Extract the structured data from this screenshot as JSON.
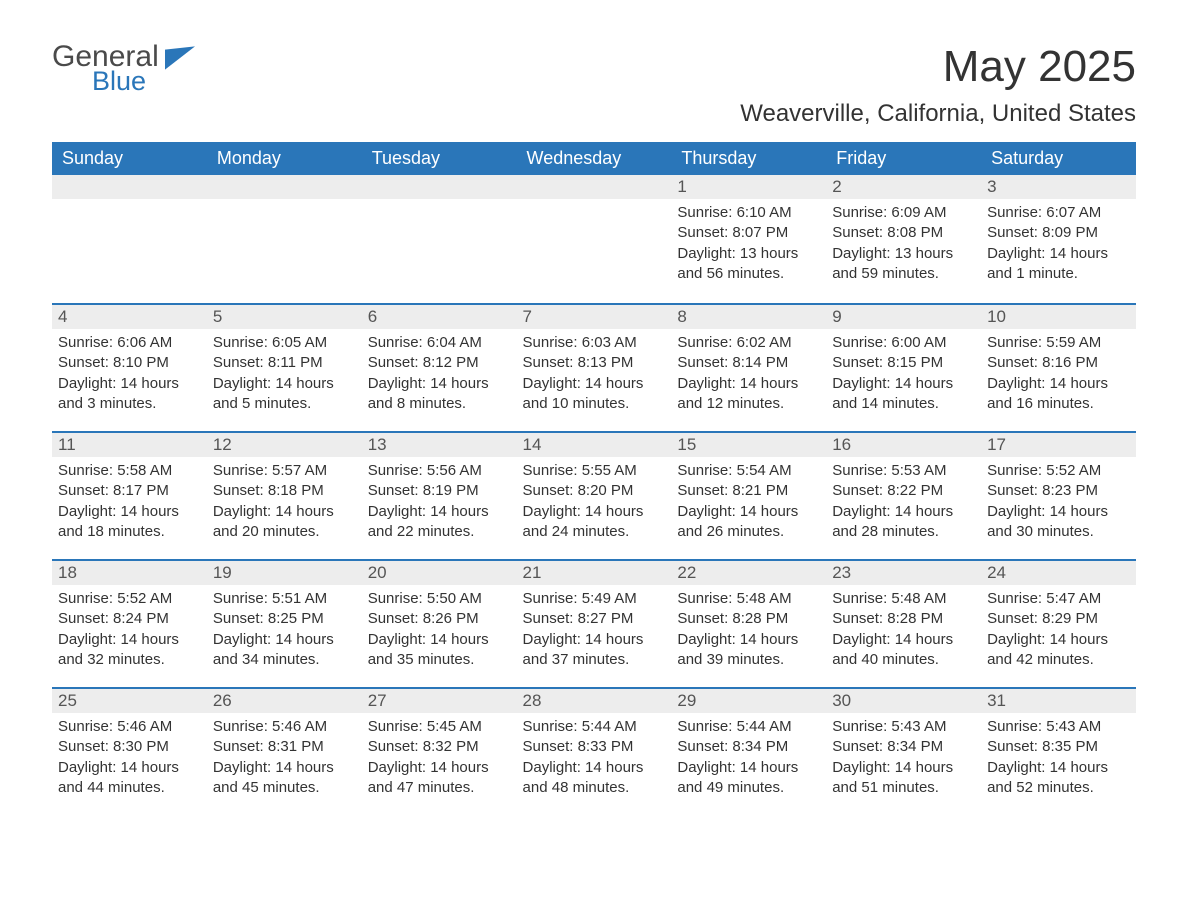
{
  "logo": {
    "general": "General",
    "blue": "Blue"
  },
  "title": "May 2025",
  "location": "Weaverville, California, United States",
  "columns": [
    "Sunday",
    "Monday",
    "Tuesday",
    "Wednesday",
    "Thursday",
    "Friday",
    "Saturday"
  ],
  "styling": {
    "header_bg": "#2a76b9",
    "header_fg": "#ffffff",
    "daybar_bg": "#ededed",
    "daybar_border": "#2a76b9",
    "page_bg": "#ffffff",
    "text_color": "#333333",
    "title_fontsize": 44,
    "location_fontsize": 24,
    "header_fontsize": 18,
    "body_fontsize": 15
  },
  "labels": {
    "sunrise": "Sunrise:",
    "sunset": "Sunset:",
    "daylight": "Daylight:"
  },
  "weeks": [
    [
      null,
      null,
      null,
      null,
      {
        "n": "1",
        "sunrise": "6:10 AM",
        "sunset": "8:07 PM",
        "daylight": "13 hours and 56 minutes."
      },
      {
        "n": "2",
        "sunrise": "6:09 AM",
        "sunset": "8:08 PM",
        "daylight": "13 hours and 59 minutes."
      },
      {
        "n": "3",
        "sunrise": "6:07 AM",
        "sunset": "8:09 PM",
        "daylight": "14 hours and 1 minute."
      }
    ],
    [
      {
        "n": "4",
        "sunrise": "6:06 AM",
        "sunset": "8:10 PM",
        "daylight": "14 hours and 3 minutes."
      },
      {
        "n": "5",
        "sunrise": "6:05 AM",
        "sunset": "8:11 PM",
        "daylight": "14 hours and 5 minutes."
      },
      {
        "n": "6",
        "sunrise": "6:04 AM",
        "sunset": "8:12 PM",
        "daylight": "14 hours and 8 minutes."
      },
      {
        "n": "7",
        "sunrise": "6:03 AM",
        "sunset": "8:13 PM",
        "daylight": "14 hours and 10 minutes."
      },
      {
        "n": "8",
        "sunrise": "6:02 AM",
        "sunset": "8:14 PM",
        "daylight": "14 hours and 12 minutes."
      },
      {
        "n": "9",
        "sunrise": "6:00 AM",
        "sunset": "8:15 PM",
        "daylight": "14 hours and 14 minutes."
      },
      {
        "n": "10",
        "sunrise": "5:59 AM",
        "sunset": "8:16 PM",
        "daylight": "14 hours and 16 minutes."
      }
    ],
    [
      {
        "n": "11",
        "sunrise": "5:58 AM",
        "sunset": "8:17 PM",
        "daylight": "14 hours and 18 minutes."
      },
      {
        "n": "12",
        "sunrise": "5:57 AM",
        "sunset": "8:18 PM",
        "daylight": "14 hours and 20 minutes."
      },
      {
        "n": "13",
        "sunrise": "5:56 AM",
        "sunset": "8:19 PM",
        "daylight": "14 hours and 22 minutes."
      },
      {
        "n": "14",
        "sunrise": "5:55 AM",
        "sunset": "8:20 PM",
        "daylight": "14 hours and 24 minutes."
      },
      {
        "n": "15",
        "sunrise": "5:54 AM",
        "sunset": "8:21 PM",
        "daylight": "14 hours and 26 minutes."
      },
      {
        "n": "16",
        "sunrise": "5:53 AM",
        "sunset": "8:22 PM",
        "daylight": "14 hours and 28 minutes."
      },
      {
        "n": "17",
        "sunrise": "5:52 AM",
        "sunset": "8:23 PM",
        "daylight": "14 hours and 30 minutes."
      }
    ],
    [
      {
        "n": "18",
        "sunrise": "5:52 AM",
        "sunset": "8:24 PM",
        "daylight": "14 hours and 32 minutes."
      },
      {
        "n": "19",
        "sunrise": "5:51 AM",
        "sunset": "8:25 PM",
        "daylight": "14 hours and 34 minutes."
      },
      {
        "n": "20",
        "sunrise": "5:50 AM",
        "sunset": "8:26 PM",
        "daylight": "14 hours and 35 minutes."
      },
      {
        "n": "21",
        "sunrise": "5:49 AM",
        "sunset": "8:27 PM",
        "daylight": "14 hours and 37 minutes."
      },
      {
        "n": "22",
        "sunrise": "5:48 AM",
        "sunset": "8:28 PM",
        "daylight": "14 hours and 39 minutes."
      },
      {
        "n": "23",
        "sunrise": "5:48 AM",
        "sunset": "8:28 PM",
        "daylight": "14 hours and 40 minutes."
      },
      {
        "n": "24",
        "sunrise": "5:47 AM",
        "sunset": "8:29 PM",
        "daylight": "14 hours and 42 minutes."
      }
    ],
    [
      {
        "n": "25",
        "sunrise": "5:46 AM",
        "sunset": "8:30 PM",
        "daylight": "14 hours and 44 minutes."
      },
      {
        "n": "26",
        "sunrise": "5:46 AM",
        "sunset": "8:31 PM",
        "daylight": "14 hours and 45 minutes."
      },
      {
        "n": "27",
        "sunrise": "5:45 AM",
        "sunset": "8:32 PM",
        "daylight": "14 hours and 47 minutes."
      },
      {
        "n": "28",
        "sunrise": "5:44 AM",
        "sunset": "8:33 PM",
        "daylight": "14 hours and 48 minutes."
      },
      {
        "n": "29",
        "sunrise": "5:44 AM",
        "sunset": "8:34 PM",
        "daylight": "14 hours and 49 minutes."
      },
      {
        "n": "30",
        "sunrise": "5:43 AM",
        "sunset": "8:34 PM",
        "daylight": "14 hours and 51 minutes."
      },
      {
        "n": "31",
        "sunrise": "5:43 AM",
        "sunset": "8:35 PM",
        "daylight": "14 hours and 52 minutes."
      }
    ]
  ]
}
